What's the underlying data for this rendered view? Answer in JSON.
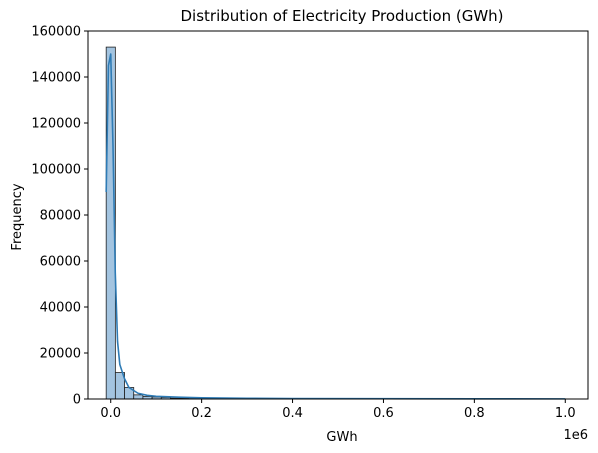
{
  "chart_data": {
    "type": "bar",
    "title": "Distribution of Electricity Production (GWh)",
    "xlabel": "GWh",
    "ylabel": "Frequency",
    "x_offset_label": "1e6",
    "xlim": [
      -50000,
      1050000
    ],
    "ylim": [
      0,
      160000
    ],
    "x_ticks": [
      0,
      200000,
      400000,
      600000,
      800000,
      1000000
    ],
    "x_tick_labels": [
      "0.0",
      "0.2",
      "0.4",
      "0.6",
      "0.8",
      "1.0"
    ],
    "y_ticks": [
      0,
      20000,
      40000,
      60000,
      80000,
      100000,
      120000,
      140000,
      160000
    ],
    "y_tick_labels": [
      "0",
      "20000",
      "40000",
      "60000",
      "80000",
      "100000",
      "120000",
      "140000",
      "160000"
    ],
    "bin_start": -10000,
    "bin_width": 20200,
    "counts": [
      153000,
      11500,
      5000,
      1800,
      1100,
      900,
      700,
      400,
      300,
      200,
      150,
      120,
      100,
      90,
      80,
      70,
      60,
      50,
      50,
      40,
      40,
      30,
      30,
      30,
      25,
      25,
      20,
      20,
      20,
      15,
      15,
      15,
      15,
      10,
      10,
      10,
      10,
      10,
      10,
      10,
      10,
      10,
      10,
      10,
      10,
      10,
      10,
      10,
      10,
      10
    ],
    "kde": {
      "x": [
        -10000,
        -5000,
        0,
        5000,
        10000,
        15000,
        20000,
        30000,
        40000,
        60000,
        80000,
        100000,
        150000,
        200000,
        300000,
        400000,
        600000,
        800000,
        1000000
      ],
      "y": [
        90000,
        145000,
        150000,
        110000,
        55000,
        25000,
        15000,
        9000,
        5000,
        2500,
        1600,
        1200,
        800,
        500,
        300,
        200,
        120,
        80,
        50
      ]
    },
    "grid": false,
    "legend": "none",
    "colors": {
      "bar_fill": "#a3c4e0",
      "bar_edge": "#1f1f1f",
      "kde_line": "#2e7bb5",
      "axis": "#000000"
    }
  }
}
